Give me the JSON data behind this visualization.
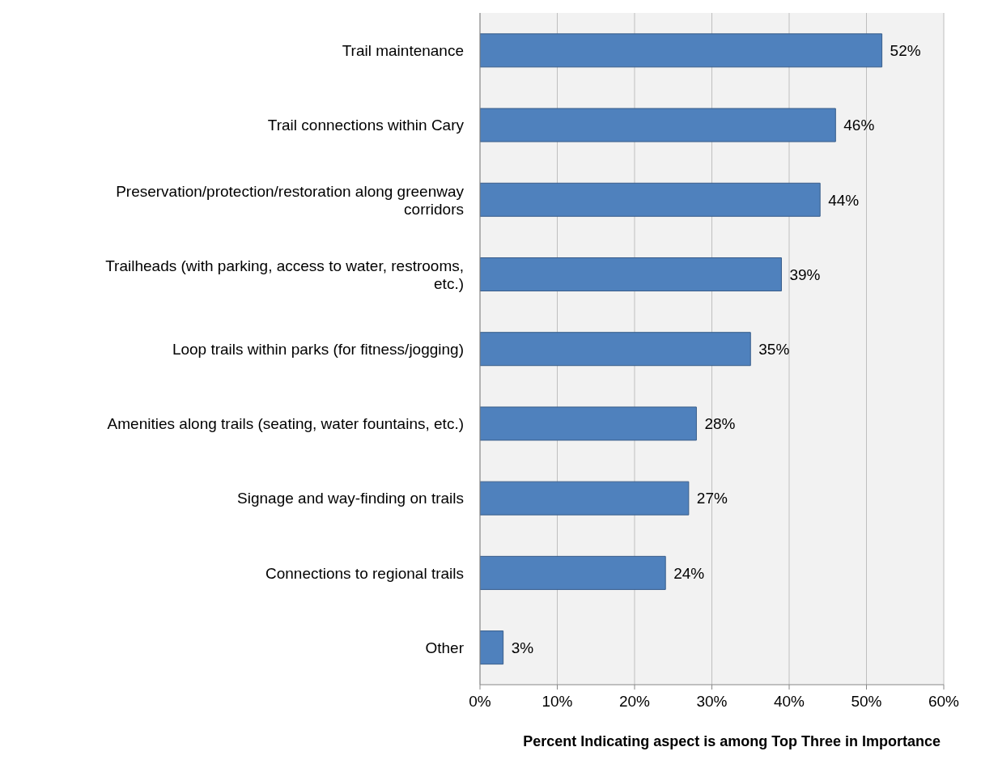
{
  "chart_data": {
    "type": "bar",
    "orientation": "horizontal",
    "xlabel": "Percent Indicating aspect is among Top Three in Importance",
    "categories": [
      "Trail maintenance",
      "Trail connections within Cary",
      "Preservation/protection/restoration along greenway corridors",
      "Trailheads (with parking, access to water, restrooms, etc.)",
      "Loop trails within parks (for fitness/jogging)",
      "Amenities along trails (seating, water fountains, etc.)",
      "Signage and way-finding on trails",
      "Connections to regional trails",
      "Other"
    ],
    "values": [
      52,
      46,
      44,
      39,
      35,
      28,
      27,
      24,
      3
    ],
    "value_labels": [
      "52%",
      "46%",
      "44%",
      "39%",
      "35%",
      "28%",
      "27%",
      "24%",
      "3%"
    ],
    "color": "#4f81bd",
    "xlim": [
      0,
      60
    ],
    "xticks": [
      {
        "value": 0,
        "label": "0%"
      },
      {
        "value": 10,
        "label": "10%"
      },
      {
        "value": 20,
        "label": "20%"
      },
      {
        "value": 30,
        "label": "30%"
      },
      {
        "value": 40,
        "label": "40%"
      },
      {
        "value": 50,
        "label": "50%"
      },
      {
        "value": 60,
        "label": "60%"
      }
    ],
    "grid": "x"
  }
}
